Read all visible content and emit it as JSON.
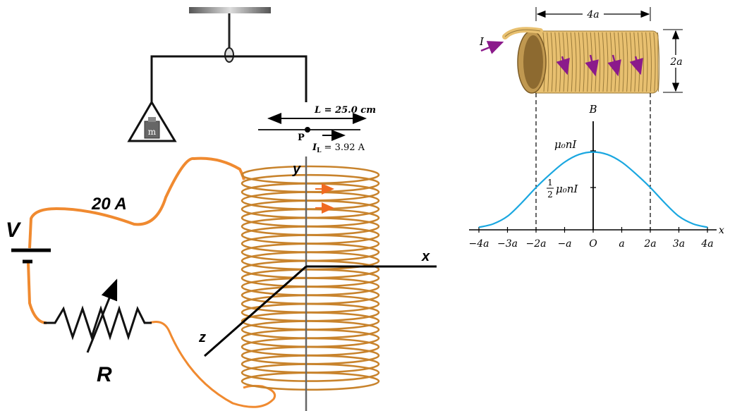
{
  "left_setup": {
    "mass_label": "m",
    "length_label": "L = 25.0 cm",
    "point_label": "P",
    "current_label_main": "I",
    "current_label_sub": "L",
    "current_label_value": " = 3.92 A",
    "supply_current_label": "20 A",
    "voltage_label": "V",
    "resistor_label": "R",
    "axis_y": "y",
    "axis_x": "x",
    "axis_z": "z",
    "colors": {
      "wire": "#f08a30",
      "coil": "#c8832c",
      "coil_arrow": "#f06a20"
    }
  },
  "right_figure": {
    "current_label": "I",
    "length_label": "4a",
    "diameter_label": "2a",
    "field_axis_label": "B",
    "max_label": "μ₀nI",
    "half_label_num": "1",
    "half_label_den": "2",
    "half_label_rest": "μ₀nI",
    "x_axis_label": "x",
    "x_ticks": [
      "−4a",
      "−3a",
      "−2a",
      "−a",
      "O",
      "a",
      "2a",
      "3a",
      "4a"
    ],
    "colors": {
      "curve": "#1aa7e0",
      "arrow": "#8b1a8b",
      "solenoid": "#e8c070"
    },
    "chart_data": {
      "type": "line",
      "x": [
        -4,
        -3.5,
        -3,
        -2.5,
        -2,
        -1.5,
        -1,
        -0.5,
        0,
        0.5,
        1,
        1.5,
        2,
        2.5,
        3,
        3.5,
        4
      ],
      "y": [
        0.03,
        0.07,
        0.16,
        0.32,
        0.5,
        0.66,
        0.8,
        0.89,
        0.92,
        0.89,
        0.8,
        0.66,
        0.5,
        0.32,
        0.16,
        0.07,
        0.03
      ],
      "x_unit": "a",
      "y_unit": "μ₀nI",
      "xlim": [
        -4,
        4
      ],
      "ylim": [
        0,
        1
      ]
    }
  }
}
